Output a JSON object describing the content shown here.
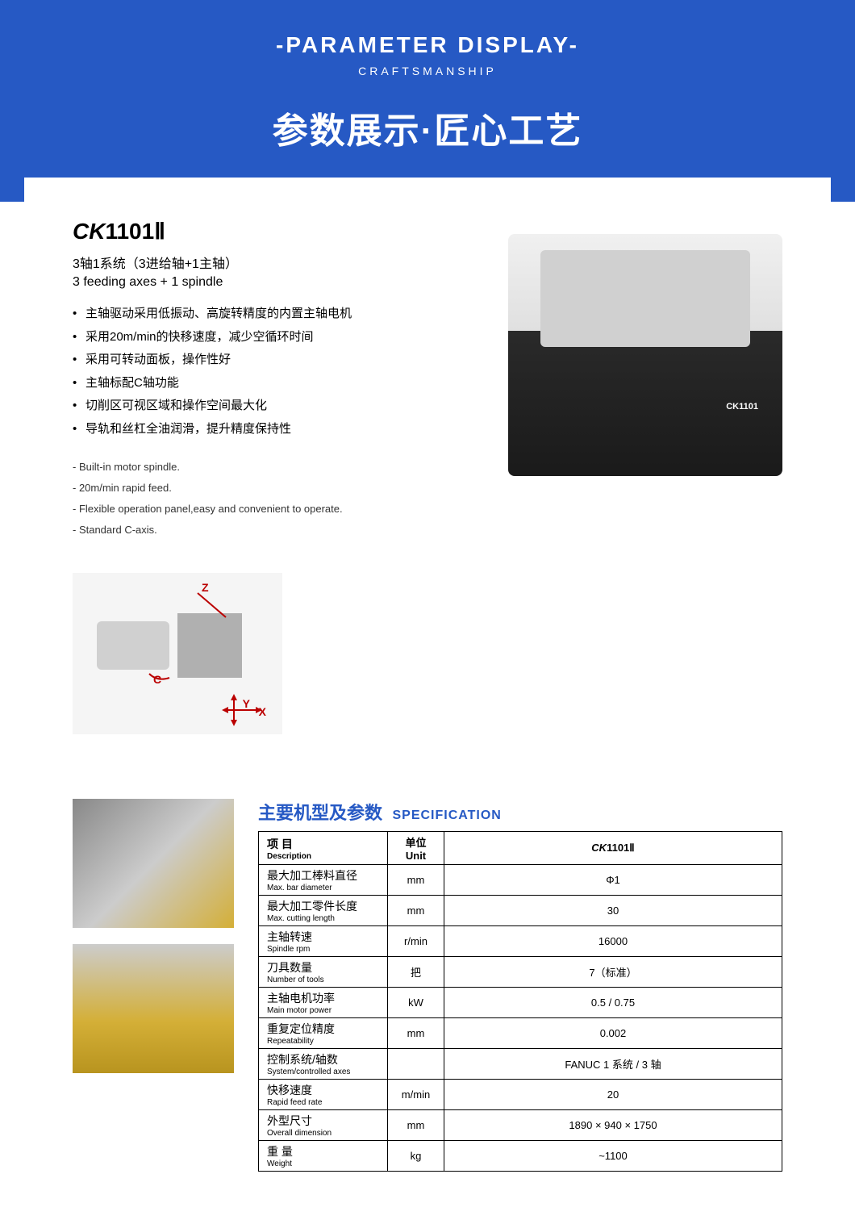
{
  "header": {
    "title_en": "-PARAMETER DISPLAY-",
    "subtitle_en": "CRAFTSMANSHIP",
    "title_cn": "参数展示·匠心工艺"
  },
  "product": {
    "model_prefix": "CK",
    "model_number": "1101Ⅱ",
    "axes_cn": "3轴1系统（3进给轴+1主轴）",
    "axes_en": "3 feeding axes + 1 spindle",
    "features_cn": [
      "主轴驱动采用低振动、高旋转精度的内置主轴电机",
      "采用20m/min的快移速度，减少空循环时间",
      "采用可转动面板，操作性好",
      "主轴标配C轴功能",
      "切削区可视区域和操作空间最大化",
      "导轨和丝杠全油润滑，提升精度保持性"
    ],
    "features_en": [
      "- Built-in motor spindle.",
      "- 20m/min rapid feed.",
      "- Flexible operation panel,easy and convenient to operate.",
      "- Standard C-axis."
    ],
    "machine_label": "CK1101"
  },
  "diagram": {
    "z": "Z",
    "c": "C",
    "y": "Y",
    "x": "X"
  },
  "spec": {
    "title_cn": "主要机型及参数",
    "title_en": "SPECIFICATION",
    "headers": {
      "desc_cn": "项 目",
      "desc_en": "Description",
      "unit_cn": "单位",
      "unit_en": "Unit",
      "model_prefix": "CK",
      "model_number": "1101Ⅱ"
    },
    "rows": [
      {
        "cn": "最大加工棒料直径",
        "en": "Max. bar diameter",
        "unit": "mm",
        "value": "Φ1"
      },
      {
        "cn": "最大加工零件长度",
        "en": "Max. cutting length",
        "unit": "mm",
        "value": "30"
      },
      {
        "cn": "主轴转速",
        "en": "Spindle rpm",
        "unit": "r/min",
        "value": "16000"
      },
      {
        "cn": "刀具数量",
        "en": "Number of tools",
        "unit": "把",
        "value": "7（标准）"
      },
      {
        "cn": "主轴电机功率",
        "en": "Main motor power",
        "unit": "kW",
        "value": "0.5 / 0.75"
      },
      {
        "cn": "重复定位精度",
        "en": "Repeatability",
        "unit": "mm",
        "value": "0.002"
      },
      {
        "cn": "控制系统/轴数",
        "en": "System/controlled axes",
        "unit": "",
        "value": "FANUC  1 系统 / 3 轴"
      },
      {
        "cn": "快移速度",
        "en": "Rapid feed rate",
        "unit": "m/min",
        "value": "20"
      },
      {
        "cn": "外型尺寸",
        "en": "Overall dimension",
        "unit": "mm",
        "value": "1890 × 940 × 1750"
      },
      {
        "cn": "重 量",
        "en": "Weight",
        "unit": "kg",
        "value": "~1100"
      }
    ]
  }
}
